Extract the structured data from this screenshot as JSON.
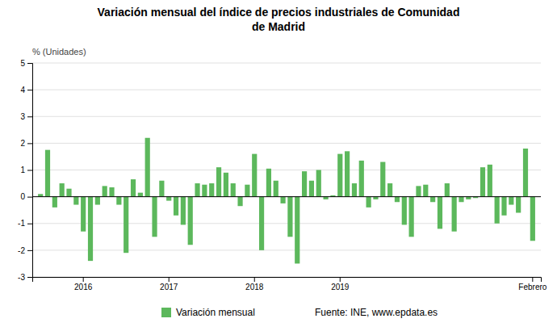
{
  "chart_data": {
    "type": "bar",
    "title": "Variación mensual del índice de precios industriales de Comunidad\nde Madrid",
    "ylabel": "% (Unidades)",
    "annotations": [
      "Fuente: INE, www.epdata.es"
    ],
    "categories": [
      null,
      null,
      null,
      null,
      null,
      null,
      "2016",
      null,
      null,
      null,
      null,
      null,
      null,
      null,
      null,
      null,
      null,
      null,
      "2017",
      null,
      null,
      null,
      null,
      null,
      null,
      null,
      null,
      null,
      null,
      null,
      "2018",
      null,
      null,
      null,
      null,
      null,
      null,
      null,
      null,
      null,
      null,
      null,
      "2019",
      null,
      null,
      null,
      null,
      null,
      null,
      null,
      null,
      null,
      null,
      null,
      null,
      null,
      null,
      null,
      null,
      null,
      null,
      null,
      null,
      null,
      null,
      null,
      null,
      null,
      null,
      "Febrero"
    ],
    "series": [
      {
        "name": "Variación mensual",
        "color": "#5cb85c",
        "values": [
          0.1,
          1.75,
          -0.4,
          0.5,
          0.3,
          -0.3,
          -1.3,
          -2.4,
          -0.3,
          0.4,
          0.35,
          -0.3,
          -2.1,
          0.65,
          0.15,
          2.2,
          -1.5,
          0.6,
          -0.15,
          -0.7,
          -1.05,
          -1.8,
          0.5,
          0.45,
          0.5,
          1.1,
          0.9,
          0.5,
          -0.35,
          0.45,
          1.6,
          -2.0,
          1.05,
          0.6,
          -0.25,
          -1.5,
          -2.5,
          0.95,
          0.6,
          1.0,
          -0.1,
          0.05,
          1.6,
          1.7,
          0.5,
          1.35,
          -0.4,
          -0.1,
          1.3,
          0.5,
          -0.2,
          -1.05,
          -1.5,
          0.4,
          0.45,
          -0.2,
          -1.2,
          0.5,
          -1.3,
          -0.2,
          -0.1,
          -0.05,
          1.1,
          1.2,
          -1.0,
          -0.7,
          -0.3,
          -0.6,
          1.8,
          -1.65
        ]
      }
    ],
    "ylim": [
      -3,
      5
    ],
    "yticks": [
      -3,
      -2,
      -1,
      0,
      1,
      2,
      3,
      4,
      5
    ],
    "grid": true,
    "legend": "bottom"
  }
}
